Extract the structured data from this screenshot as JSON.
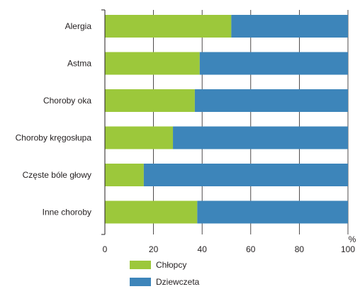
{
  "chart_data": {
    "type": "bar",
    "stacked": true,
    "orientation": "horizontal",
    "title": "",
    "xlabel": "",
    "ylabel": "",
    "unit_label": "%",
    "xlim": [
      0,
      100
    ],
    "x_ticks": [
      "0",
      "20",
      "40",
      "60",
      "80",
      "100"
    ],
    "grid": true,
    "legend_position": "bottom-left",
    "categories": [
      "Alergia",
      "Astma",
      "Choroby oka",
      "Choroby kręgosłupa",
      "Częste bóle głowy",
      "Inne choroby"
    ],
    "series": [
      {
        "name": "Chłopcy",
        "color": "#9cc83b",
        "values": [
          52,
          39,
          37,
          28,
          16,
          38
        ]
      },
      {
        "name": "Dziewczeta",
        "color": "#3d85ba",
        "values": [
          48,
          61,
          63,
          72,
          84,
          62
        ]
      }
    ]
  }
}
